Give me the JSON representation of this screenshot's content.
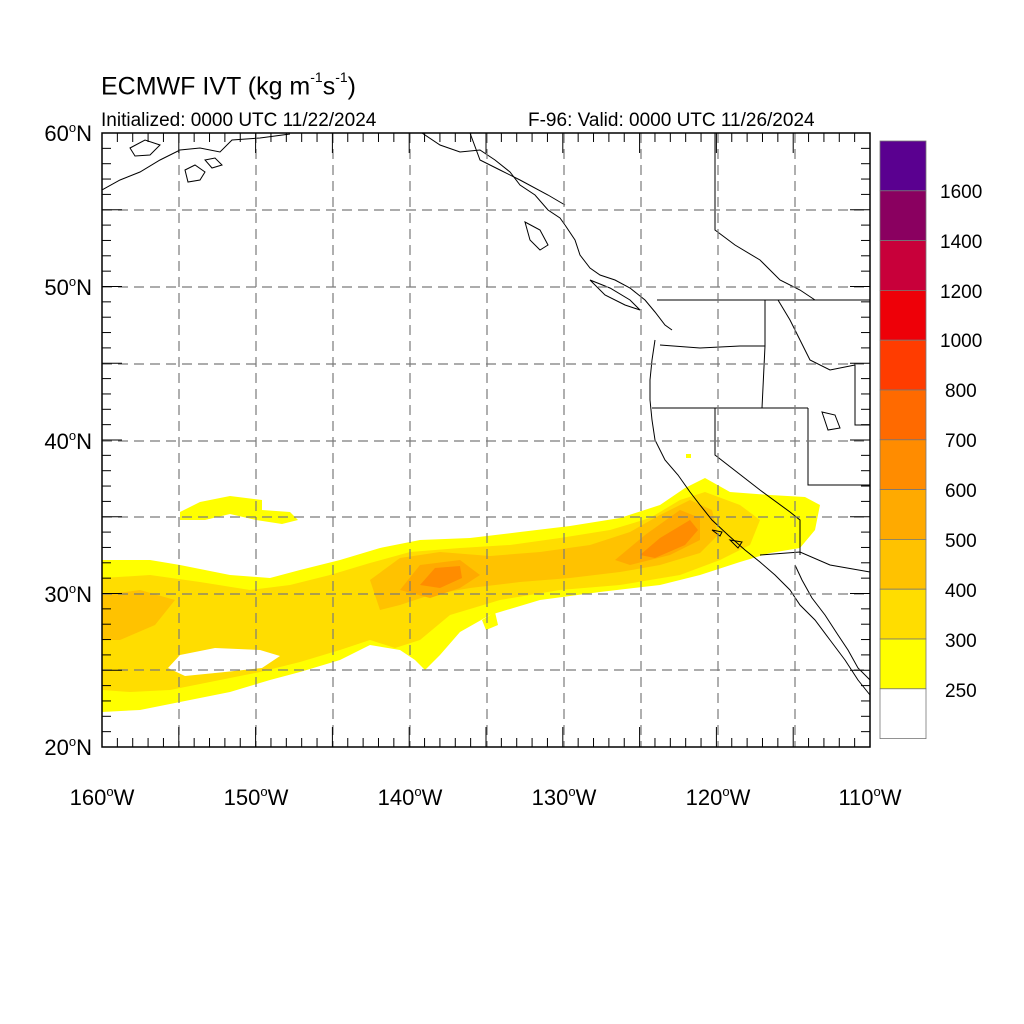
{
  "title": {
    "main": "ECMWF IVT (kg m",
    "sup1": "-1",
    "mid": "s",
    "sup2": "-1",
    "end": ")"
  },
  "initialized": "Initialized: 0000 UTC 11/22/2024",
  "valid": "F-96: Valid: 0000 UTC 11/26/2024",
  "map": {
    "lon_range": [
      -160,
      -110
    ],
    "lat_range": [
      20,
      60
    ],
    "gridlines": "dashed",
    "lon_labels": [
      "160",
      "150",
      "140",
      "130",
      "120",
      "110"
    ],
    "lon_suffix": "W",
    "lat_labels": [
      "60",
      "50",
      "40",
      "30",
      "20"
    ],
    "lat_suffix": "N",
    "degree_symbol": "o"
  },
  "colorbar": {
    "labels": [
      "1600",
      "1400",
      "1200",
      "1000",
      "800",
      "700",
      "600",
      "500",
      "400",
      "300",
      "250"
    ],
    "levels": [
      250,
      300,
      400,
      500,
      600,
      700,
      800,
      1000,
      1200,
      1400,
      1600
    ],
    "colors": [
      "#ffffff",
      "#ffff00",
      "#ffdd00",
      "#ffc200",
      "#ffaa00",
      "#ff8c00",
      "#ff6a00",
      "#ff3c00",
      "#ee0008",
      "#c8003a",
      "#8a0060",
      "#5a0090"
    ]
  },
  "colors": {
    "ivt_250": "#ffff00",
    "ivt_300": "#ffdd00",
    "ivt_400": "#ffc200",
    "ivt_500": "#ffaa00",
    "ivt_600": "#ff8c00",
    "ivt_700": "#ff6a00"
  }
}
